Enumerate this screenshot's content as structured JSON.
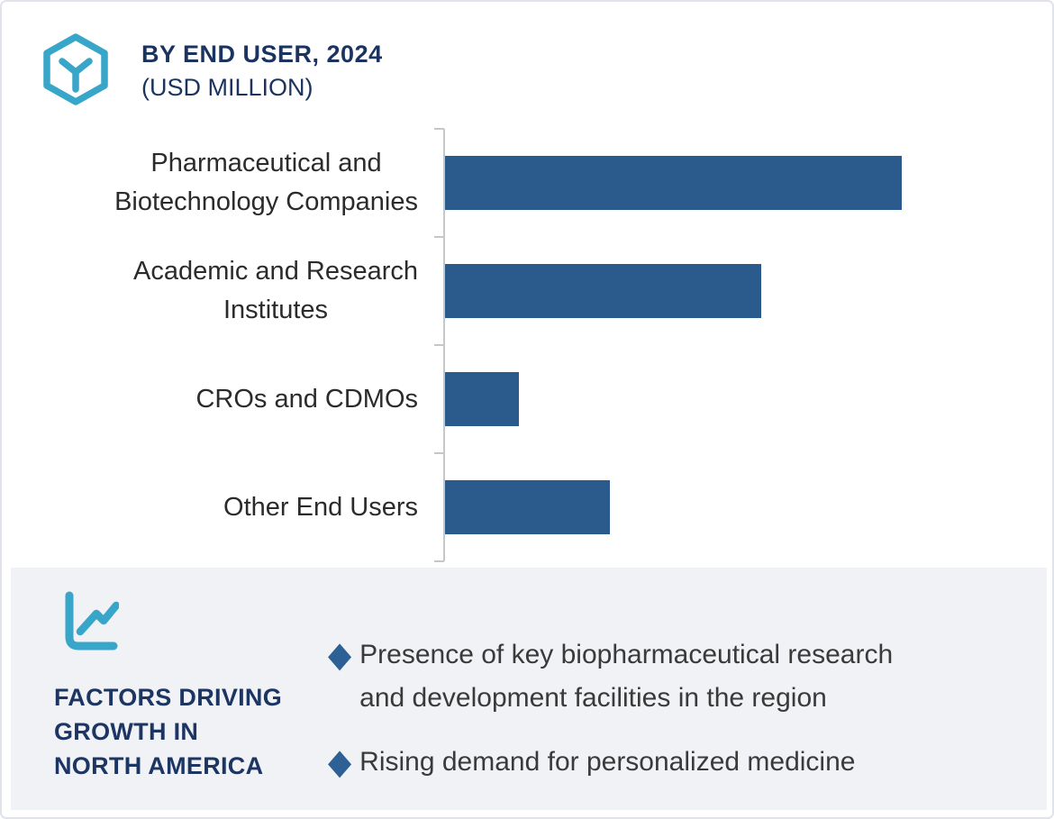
{
  "header": {
    "title": "BY END USER, 2024",
    "subtitle": "(USD MILLION)",
    "icon": "hexagon-cube-icon"
  },
  "chart_data": {
    "type": "bar",
    "orientation": "horizontal",
    "title": "BY END USER, 2024 (USD MILLION)",
    "categories": [
      "Pharmaceutical and\nBiotechnology Companies",
      "Academic and Research\nInstitutes",
      "CROs and CDMOs",
      "Other End Users"
    ],
    "values_relative": [
      100,
      69.2,
      16.2,
      36.1
    ],
    "value_axis_note": "numeric axis not labeled in image; values are bar lengths relative to largest bar = 100",
    "bar_color": "#2b5a8c",
    "axis_color": "#c5c7c9",
    "grid": "none",
    "legend": "none"
  },
  "factors": {
    "heading_line1": "FACTORS DRIVING",
    "heading_line2": "GROWTH IN",
    "heading_line3": "NORTH AMERICA",
    "icon": "line-chart-icon",
    "bullet_marker": "◆",
    "bullets": [
      {
        "text": "Presence of key biopharmaceutical research and development facilities in the region"
      },
      {
        "text": "Rising demand for personalized medicine"
      }
    ]
  },
  "colors": {
    "teal_accent": "#38a6c8",
    "navy_text": "#1a335f",
    "bar_blue": "#2b5a8c",
    "diamond_blue": "#2d6094",
    "panel_bg": "#f0f2f6",
    "frame_border": "#e0e3e9"
  }
}
